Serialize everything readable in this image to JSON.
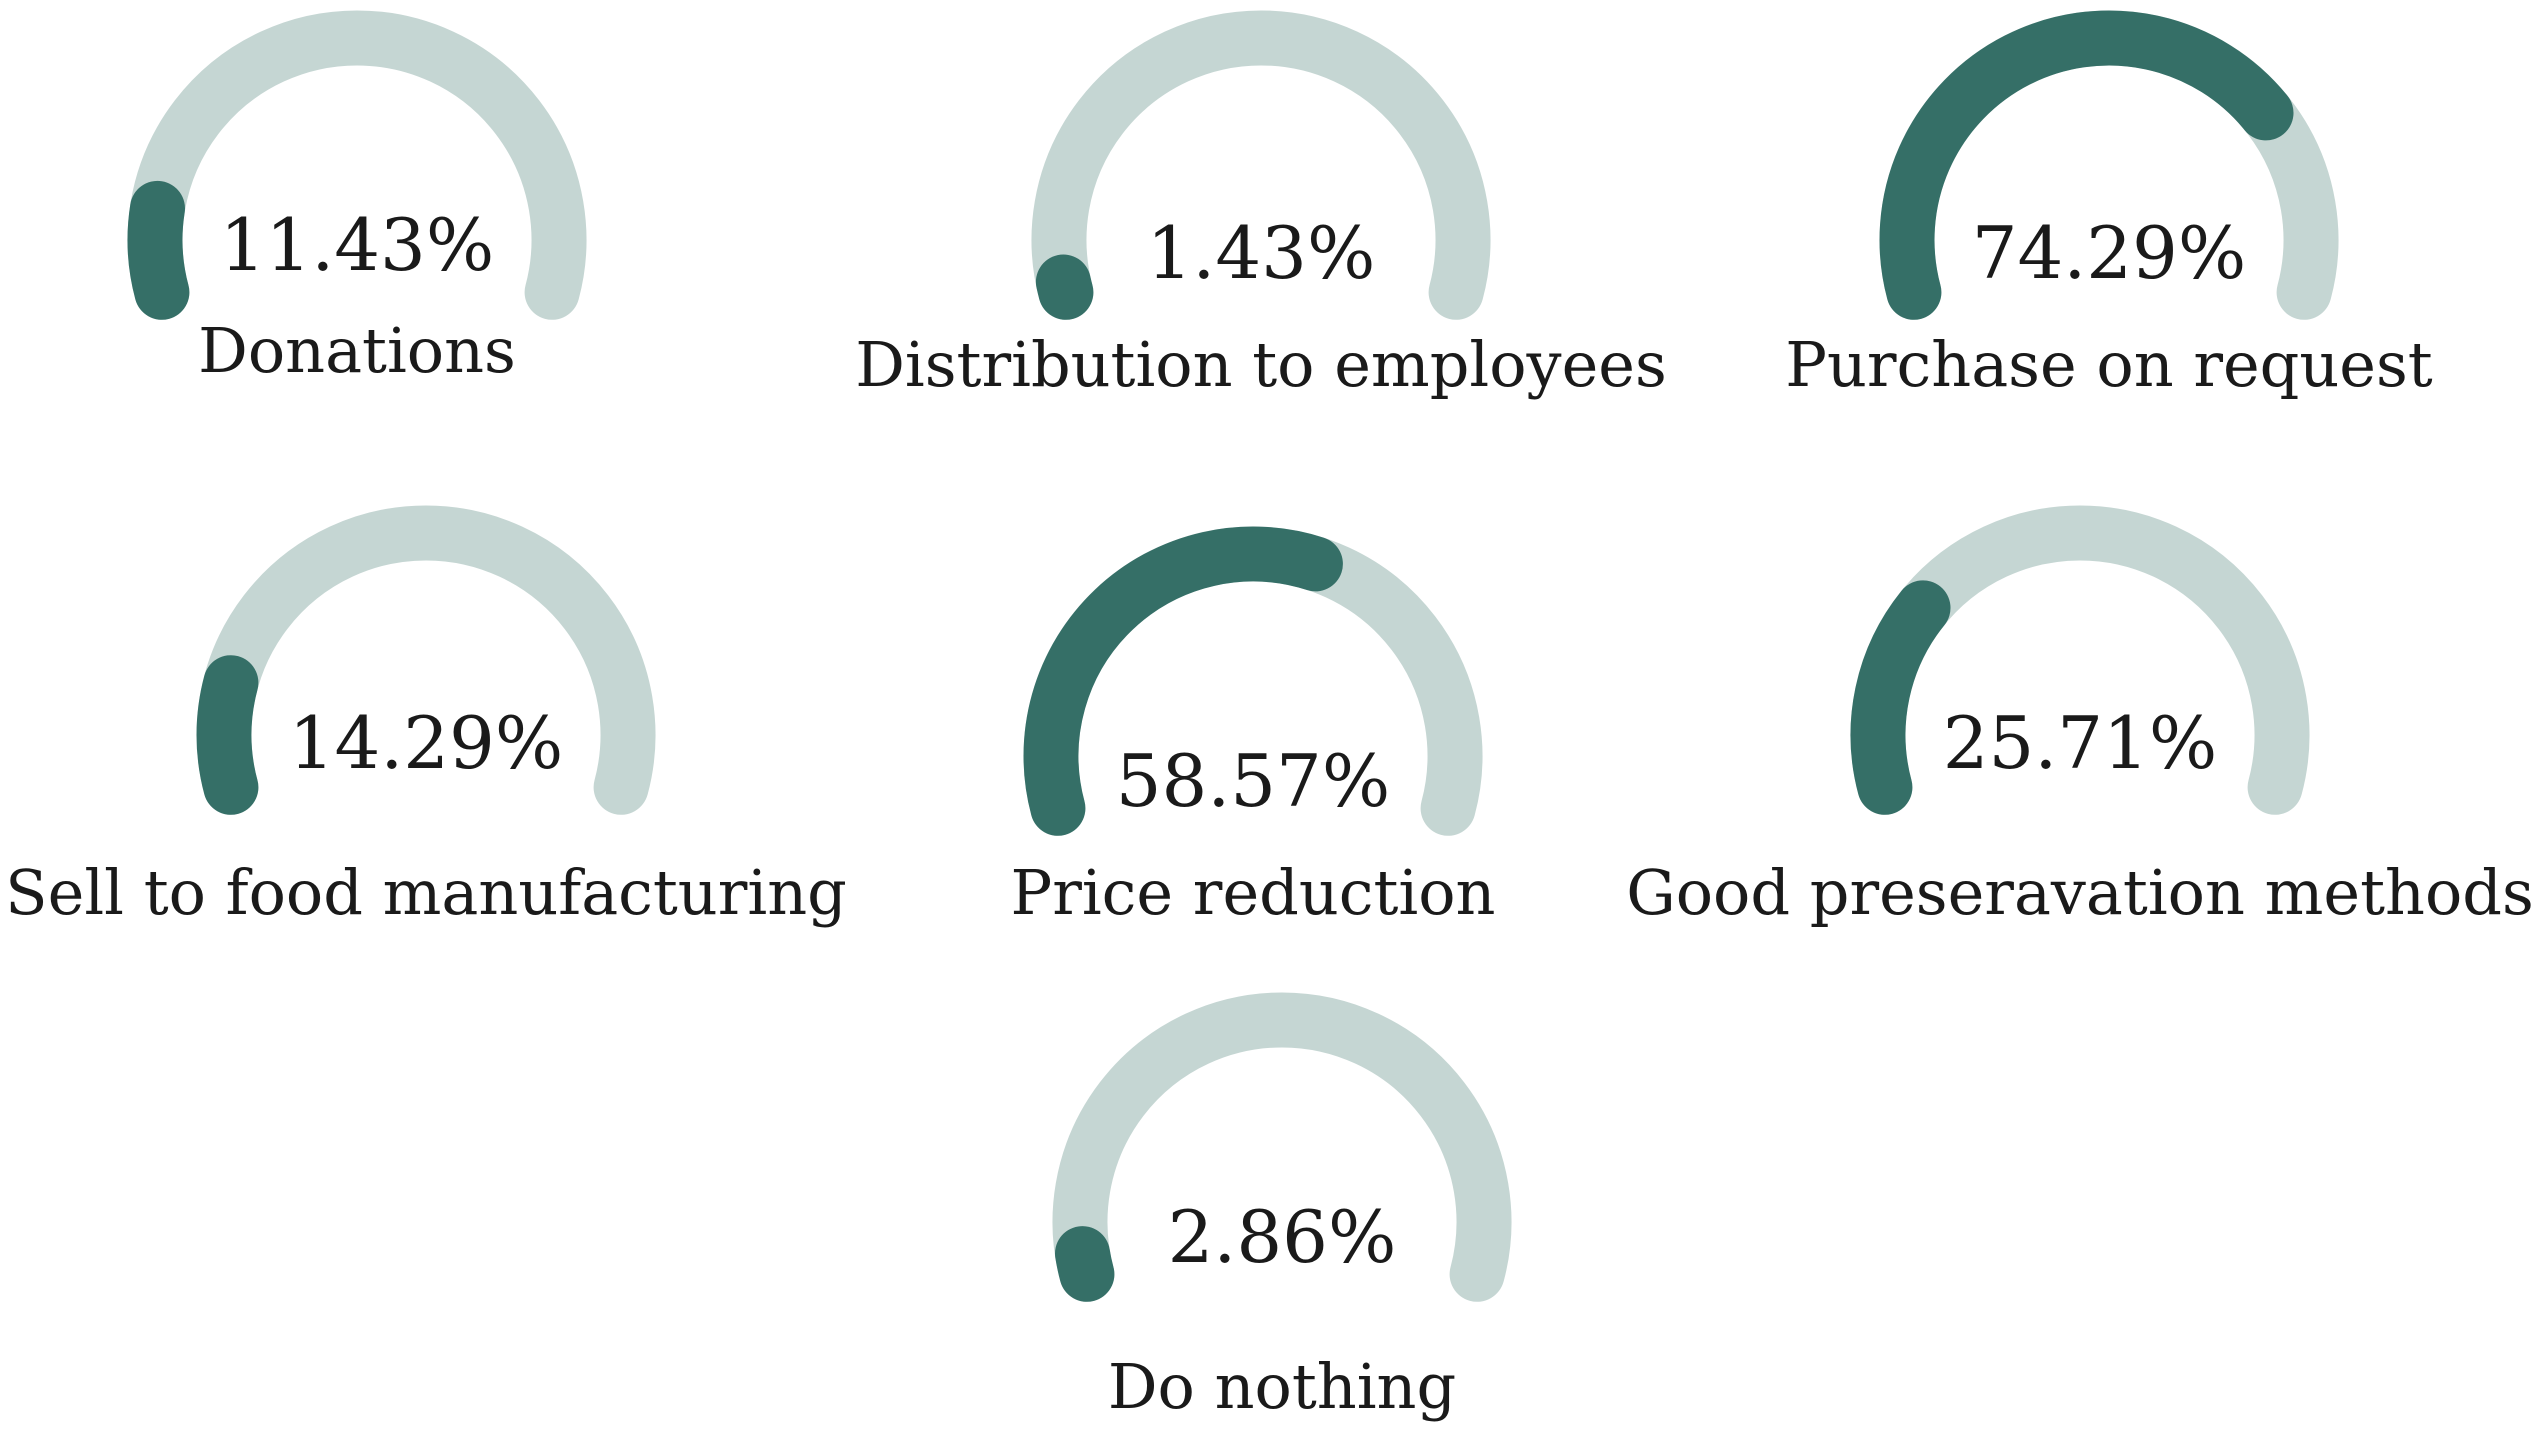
{
  "colors": {
    "track": "#c5d6d3",
    "fill": "#356f67",
    "text": "#1a1a1a",
    "background": "#ffffff"
  },
  "chart_data": {
    "type": "gauge",
    "unit": "%",
    "scale": [
      0,
      100
    ],
    "items": [
      {
        "label": "Donations",
        "value": 11.43,
        "display": "11.43%"
      },
      {
        "label": "Distribution to employees",
        "value": 1.43,
        "display": "1.43%"
      },
      {
        "label": "Purchase on request",
        "value": 74.29,
        "display": "74.29%"
      },
      {
        "label": "Sell to food manufacturing",
        "value": 14.29,
        "display": "14.29%"
      },
      {
        "label": "Price reduction",
        "value": 58.57,
        "display": "58.57%"
      },
      {
        "label": "Good preseravation methods",
        "value": 25.71,
        "display": "25.71%"
      },
      {
        "label": "Do nothing",
        "value": 2.86,
        "display": "2.86%"
      }
    ]
  }
}
